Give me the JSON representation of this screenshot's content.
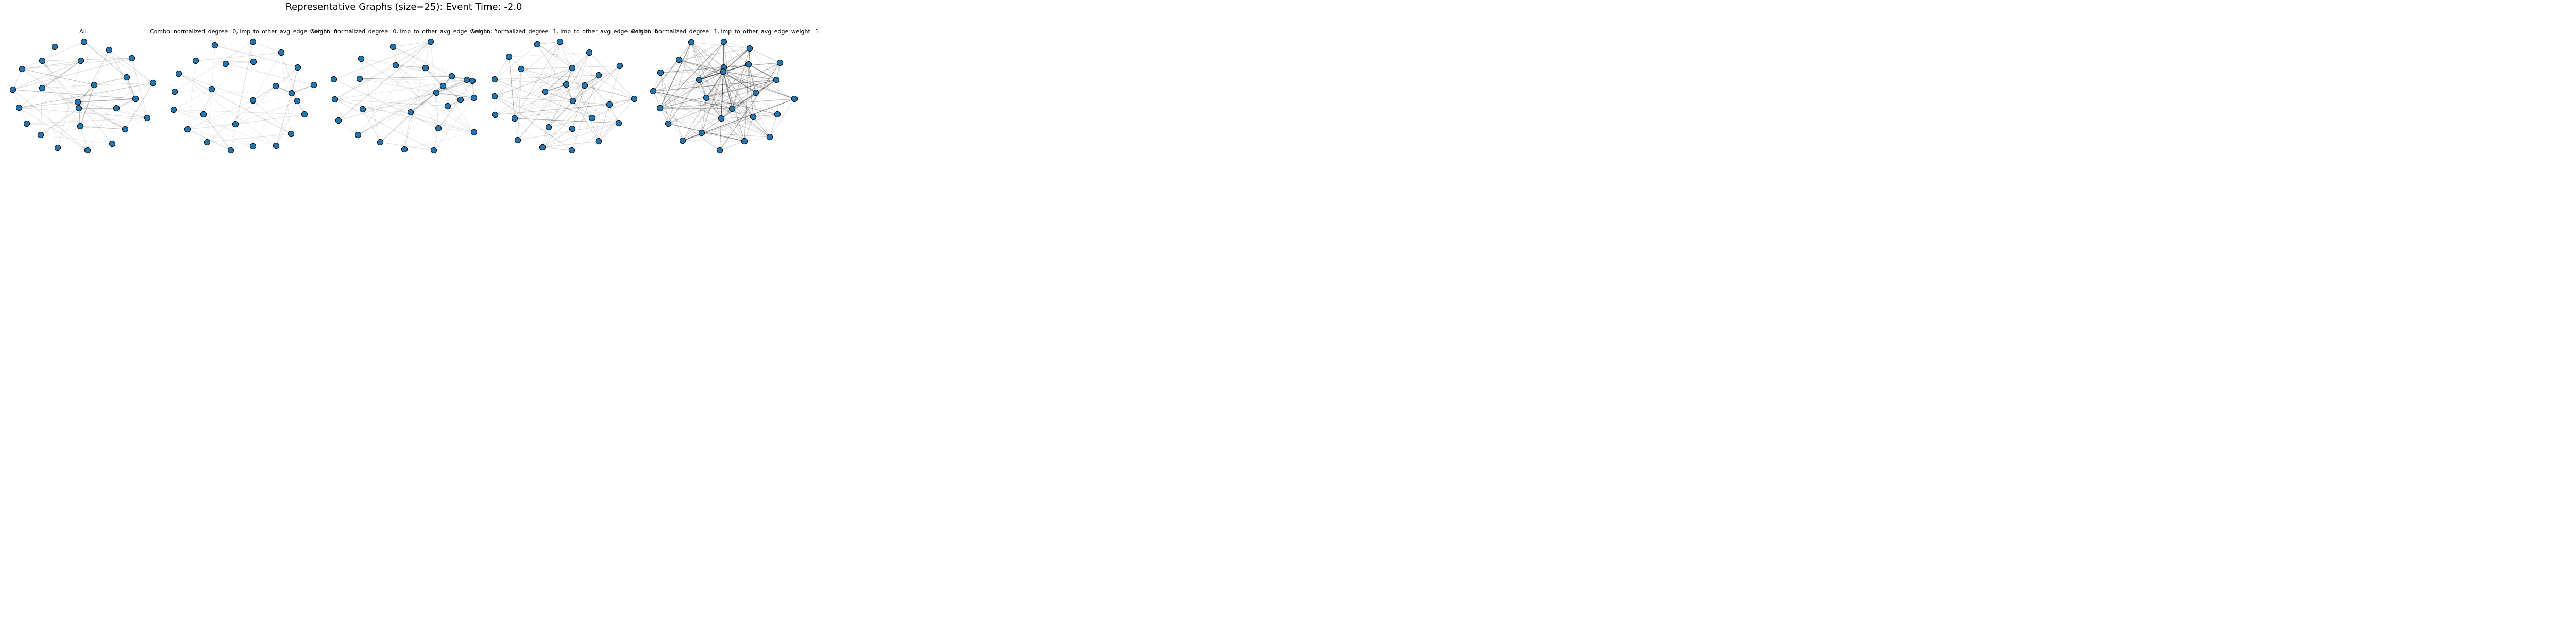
{
  "figure": {
    "title": "Representative Graphs (size=25): Event Time: -2.0"
  },
  "colors": {
    "node_fill": "#1f77b4",
    "node_stroke": "#000000",
    "edge": "#000000",
    "background": "#ffffff"
  },
  "panels": [
    {
      "title": "All"
    },
    {
      "title": "Combo: normalized_degree=0, imp_to_other_avg_edge_weight=0"
    },
    {
      "title": "Combo: normalized_degree=0, imp_to_other_avg_edge_weight=1"
    },
    {
      "title": "Combo: normalized_degree=1, imp_to_other_avg_edge_weight=0"
    },
    {
      "title": "Combo: normalized_degree=1, imp_to_other_avg_edge_weight=1"
    }
  ]
}
